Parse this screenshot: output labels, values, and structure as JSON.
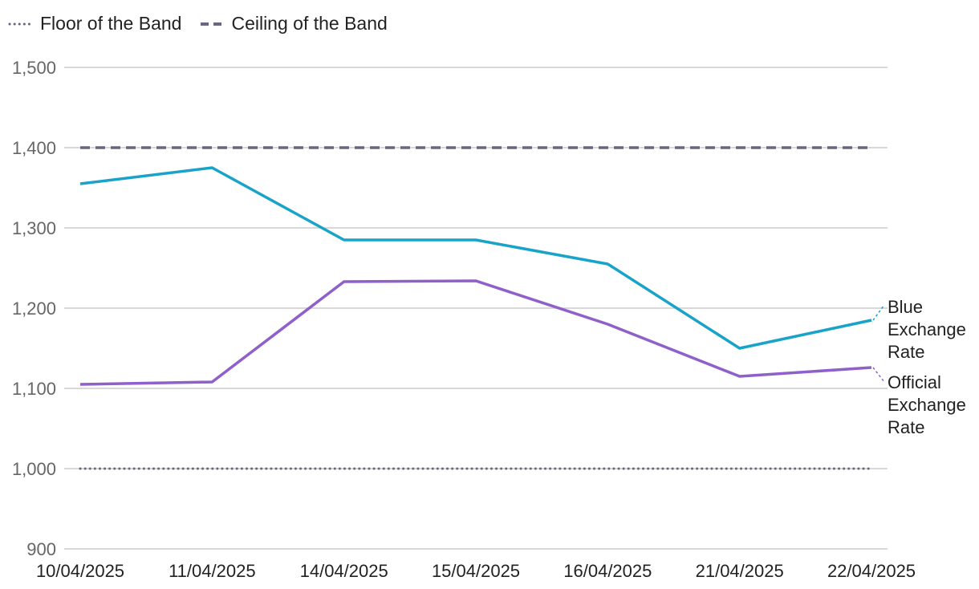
{
  "chart_data": {
    "type": "line",
    "title": "",
    "xlabel": "",
    "ylabel": "",
    "categories": [
      "10/04/2025",
      "11/04/2025",
      "14/04/2025",
      "15/04/2025",
      "16/04/2025",
      "21/04/2025",
      "22/04/2025"
    ],
    "ylim": [
      900,
      1500
    ],
    "yticks": [
      "900",
      "1,000",
      "1,100",
      "1,200",
      "1,300",
      "1,400",
      "1,500"
    ],
    "ytick_values": [
      900,
      1000,
      1100,
      1200,
      1300,
      1400,
      1500
    ],
    "grid": true,
    "legend_position": "top-left",
    "series": [
      {
        "name": "Floor of the Band",
        "style": "dotted",
        "color": "#6b6580",
        "values": [
          1000,
          1000,
          1000,
          1000,
          1000,
          1000,
          1000
        ]
      },
      {
        "name": "Ceiling of the Band",
        "style": "dashed",
        "color": "#6b6580",
        "values": [
          1400,
          1400,
          1400,
          1400,
          1400,
          1400,
          1400
        ]
      },
      {
        "name": "Blue Exchange Rate",
        "label_lines": [
          "Blue",
          "Exchange",
          "Rate"
        ],
        "style": "solid",
        "color": "#1aa3c8",
        "values": [
          1355,
          1375,
          1285,
          1285,
          1255,
          1150,
          1185
        ]
      },
      {
        "name": "Official Exchange Rate",
        "label_lines": [
          "Official",
          "Exchange",
          "Rate"
        ],
        "style": "solid",
        "color": "#8f60c9",
        "values": [
          1105,
          1108,
          1233,
          1234,
          1180,
          1115,
          1126
        ]
      }
    ]
  }
}
